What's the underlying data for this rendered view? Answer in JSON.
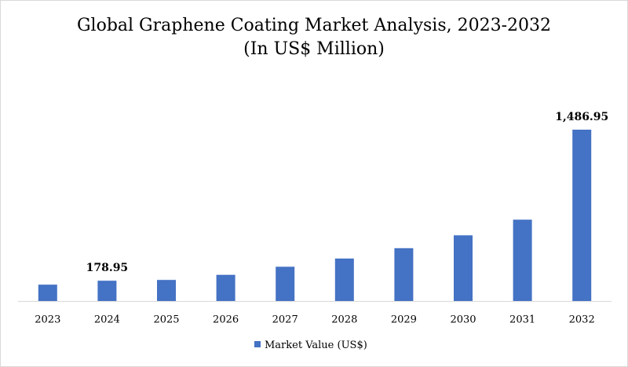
{
  "chart_data": {
    "type": "bar",
    "title": "Global Graphene Coating Market Analysis, 2023-2032",
    "subtitle": "(In US$ Million)",
    "categories": [
      "2023",
      "2024",
      "2025",
      "2026",
      "2027",
      "2028",
      "2029",
      "2030",
      "2031",
      "2032"
    ],
    "series": [
      {
        "name": "Market Value (US$)",
        "values": [
          145,
          178.95,
          186,
          230,
          300,
          371,
          461,
          572,
          708,
          1486.95
        ],
        "color": "#4472c4"
      }
    ],
    "data_labels": [
      {
        "category": "2024",
        "text": "178.95"
      },
      {
        "category": "2032",
        "text": "1,486.95"
      }
    ],
    "legend_position": "bottom",
    "grid": false
  }
}
